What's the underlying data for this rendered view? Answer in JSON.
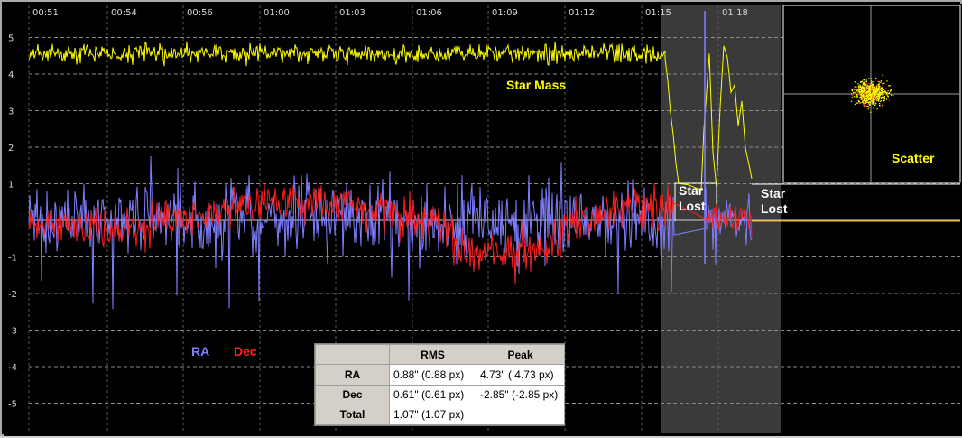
{
  "graph": {
    "time_ticks": [
      "00:51",
      "00:54",
      "00:56",
      "01:00",
      "01:03",
      "01:06",
      "01:09",
      "01:12",
      "01:15",
      "01:18"
    ],
    "y_ticks": [
      "5",
      "4",
      "3",
      "2",
      "1",
      "",
      "-1",
      "-2",
      "-3",
      "-4",
      "-5"
    ],
    "labels": {
      "star_mass": "Star Mass",
      "ra": "RA",
      "dec": "Dec",
      "scatter": "Scatter",
      "star_lost_1_line1": "Star",
      "star_lost_1_line2": "Lost",
      "star_lost_2_line1": "Star",
      "star_lost_2_line2": "Lost"
    },
    "colors": {
      "ra": "#7f7fff",
      "dec": "#ff2020",
      "star_mass": "#ffff00",
      "background": "#000000",
      "lost_region": "#3a3a3a",
      "grid": "#8a8a8a",
      "lost_line": "#ffb000"
    }
  },
  "stats": {
    "headers": [
      "",
      "RMS",
      "Peak"
    ],
    "rows": [
      {
        "label": "RA",
        "rms": "0.88\" (0.88 px)",
        "peak": "4.73\" ( 4.73 px)"
      },
      {
        "label": "Dec",
        "rms": "0.61\" (0.61 px)",
        "peak": "-2.85\" (-2.85 px)"
      },
      {
        "label": "Total",
        "rms": "1.07\" (1.07 px)",
        "peak": ""
      }
    ]
  }
}
